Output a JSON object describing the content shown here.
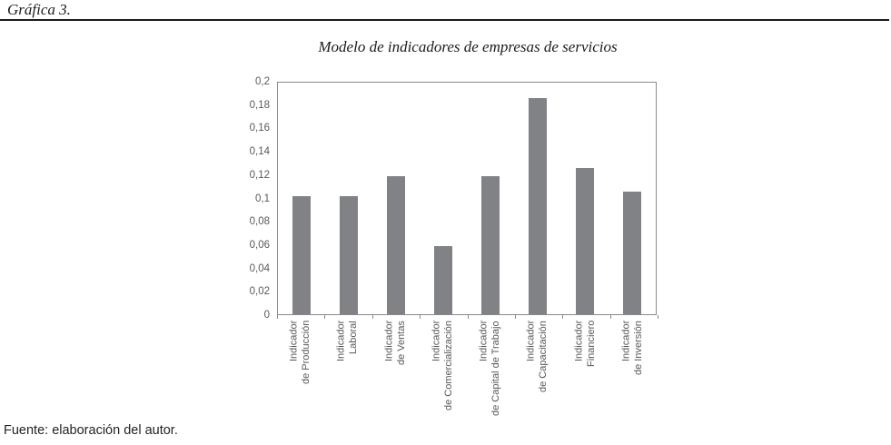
{
  "figure": {
    "caption": "Gráfica 3.",
    "source": "Fuente: elaboración del autor."
  },
  "colors": {
    "bar": "#818286",
    "axis": "#8a8a8d",
    "tick_label": "#58595b",
    "text": "#1b1b1b"
  },
  "chart_data": {
    "type": "bar",
    "title": "Modelo de indicadores de empresas de servicios",
    "categories": [
      [
        "Indicador",
        "de Producción"
      ],
      [
        "Indicador",
        "Laboral"
      ],
      [
        "Indicador",
        "de Ventas"
      ],
      [
        "Indicador",
        "de Comercialización"
      ],
      [
        "Indicador",
        "de Capital de Trabajo"
      ],
      [
        "Indicador",
        "de Capacitación"
      ],
      [
        "Indicador",
        "Financiero"
      ],
      [
        "Indicador",
        "de Inversión"
      ]
    ],
    "values": [
      0.102,
      0.102,
      0.119,
      0.059,
      0.119,
      0.187,
      0.126,
      0.106
    ],
    "xlabel": "",
    "ylabel": "",
    "ylim": [
      0,
      0.2
    ],
    "yticks": [
      {
        "label": "0,2",
        "value": 0.2
      },
      {
        "label": "0,18",
        "value": 0.18
      },
      {
        "label": "0,16",
        "value": 0.16
      },
      {
        "label": "0,14",
        "value": 0.14
      },
      {
        "label": "0,12",
        "value": 0.12
      },
      {
        "label": "0,1",
        "value": 0.1
      },
      {
        "label": "0,08",
        "value": 0.08
      },
      {
        "label": "0,06",
        "value": 0.06
      },
      {
        "label": "0,04",
        "value": 0.04
      },
      {
        "label": "0,02",
        "value": 0.02
      },
      {
        "label": "0",
        "value": 0
      }
    ],
    "grid": false,
    "legend": null
  }
}
